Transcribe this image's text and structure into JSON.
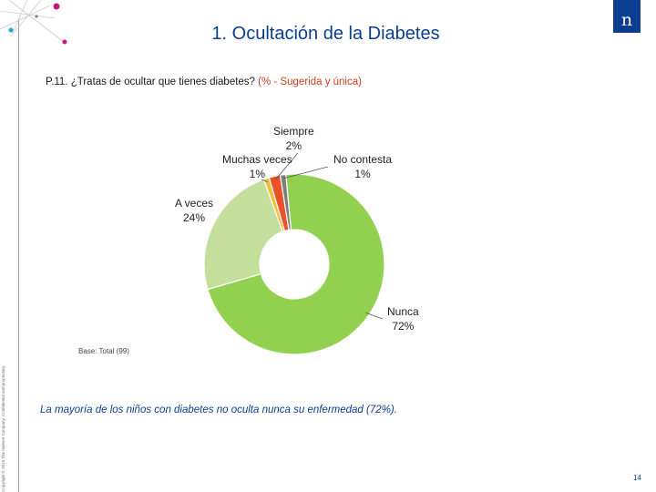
{
  "header": {
    "title": "1. Ocultación de la Diabetes",
    "logo_text": "n"
  },
  "question": {
    "code": "P.11.",
    "text": "¿Tratas de ocultar que tienes diabetes?",
    "qtype_open": "(",
    "qtype": "% - Sugerida y única",
    "qtype_close": ")"
  },
  "chart_data": {
    "type": "pie",
    "style": "donut",
    "start_angle_deg": -5.4,
    "slices": [
      {
        "name": "Nunca",
        "value": 72,
        "label": "72%",
        "color": "#92d050"
      },
      {
        "name": "A veces",
        "value": 24,
        "label": "24%",
        "color": "#c4df9b"
      },
      {
        "name": "Muchas veces",
        "value": 1,
        "label": "1%",
        "color": "#f2c037"
      },
      {
        "name": "Siempre",
        "value": 2,
        "label": "2%",
        "color": "#e8512a"
      },
      {
        "name": "No contesta",
        "value": 1,
        "label": "1%",
        "color": "#7f7f7f"
      }
    ]
  },
  "base_text": "Base: Total (99)",
  "conclusion": "La mayoría de los niños con diabetes no oculta nunca su enfermedad (72%).",
  "copyright": "Copyright © 2015 The Nielsen Company. Confidential and proprietary.",
  "page_number": "14",
  "colors": {
    "brand": "#0b3d91",
    "accent": "#c8401c",
    "decor_magenta": "#c2177b",
    "decor_cyan": "#19a9d9"
  }
}
